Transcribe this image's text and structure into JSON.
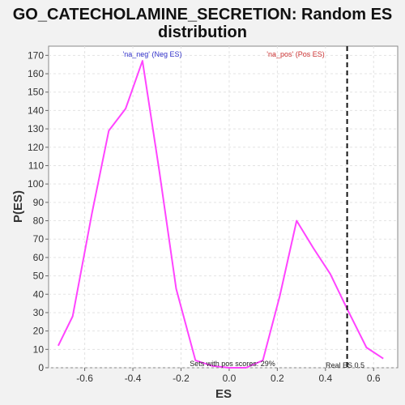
{
  "chart_data": {
    "type": "line",
    "title": "GO_CATECHOLAMINE_SECRETION: Random ES distribution",
    "title_lines": [
      "GO_CATECHOLAMINE_SECRETION: Random ES",
      "distribution"
    ],
    "xlabel": "ES",
    "ylabel": "P(ES)",
    "xlim": [
      -0.75,
      0.7
    ],
    "ylim": [
      0,
      175
    ],
    "xticks": [
      -0.6,
      -0.4,
      -0.2,
      0.0,
      0.2,
      0.4,
      0.6
    ],
    "xtick_labels": [
      "-0.6",
      "-0.4",
      "-0.2",
      "0.0",
      "0.2",
      "0.4",
      "0.6"
    ],
    "yticks": [
      0,
      10,
      20,
      30,
      40,
      50,
      60,
      70,
      80,
      90,
      100,
      110,
      120,
      130,
      140,
      150,
      160,
      170
    ],
    "ytick_labels": [
      "0",
      "10",
      "20",
      "30",
      "40",
      "50",
      "60",
      "70",
      "80",
      "90",
      "100",
      "110",
      "120",
      "130",
      "140",
      "150",
      "160",
      "170"
    ],
    "grid": true,
    "series": [
      {
        "color": "#ff44ff",
        "x": [
          -0.71,
          -0.65,
          -0.57,
          -0.5,
          -0.43,
          -0.36,
          -0.29,
          -0.22,
          -0.14,
          -0.07,
          0.0,
          0.07,
          0.14,
          0.21,
          0.28,
          0.35,
          0.42,
          0.49,
          0.57,
          0.64
        ],
        "y": [
          12,
          28,
          84,
          129,
          141,
          167,
          107,
          43,
          4,
          1,
          0,
          0,
          4,
          39,
          80,
          65,
          51,
          32,
          11,
          5
        ]
      }
    ],
    "real_es": 0.49,
    "annotations": {
      "neg_label": "'na_neg' (Neg ES)",
      "pos_label": "'na_pos' (Pos ES)",
      "pos_scores": "Sets with pos scores: 29%",
      "real_es_label": "Real ES 0.5"
    },
    "colors": {
      "neg": "#3333cc",
      "pos": "#cc3333",
      "line": "#ff44ff",
      "plot_bg": "#ffffff",
      "page_bg": "#f2f2f2"
    }
  }
}
